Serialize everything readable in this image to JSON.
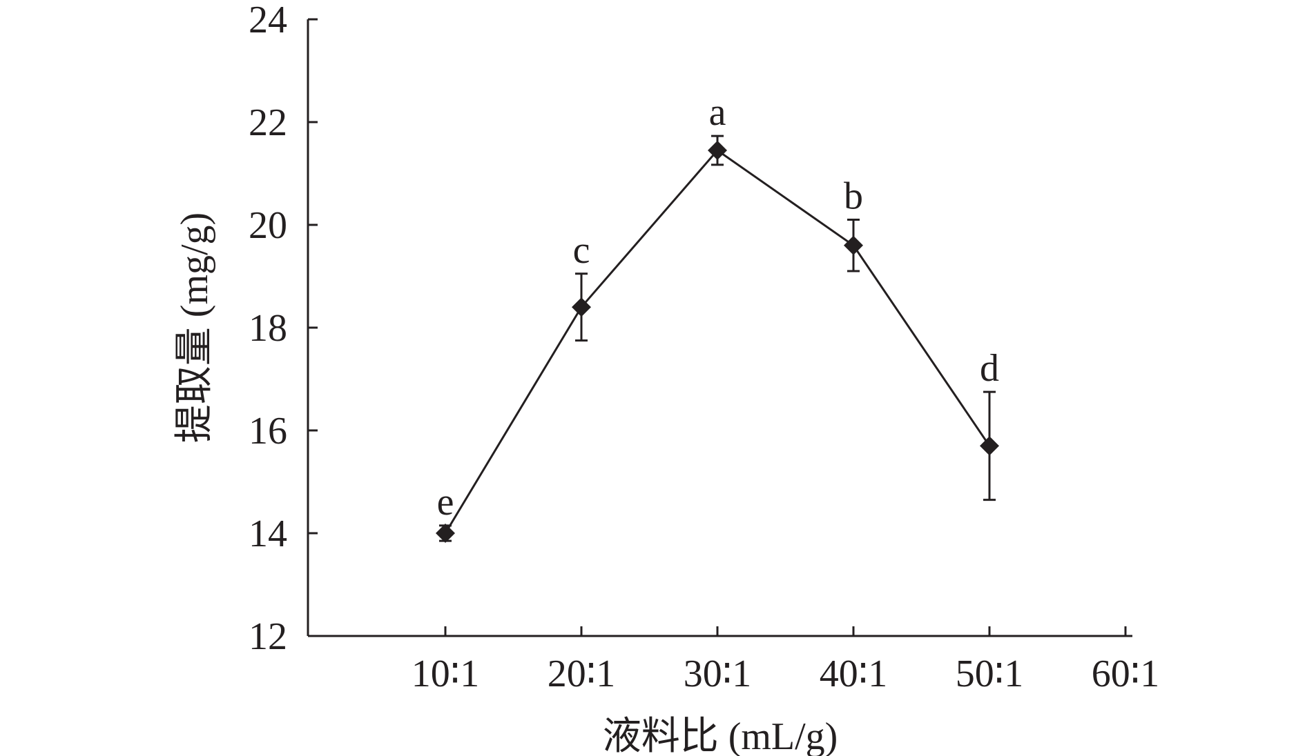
{
  "chart_data": {
    "type": "line",
    "xlabel": "液料比 (mL/g)",
    "ylabel": "提取量 (mg/g)",
    "categories": [
      "10∶1",
      "20∶1",
      "30∶1",
      "40∶1",
      "50∶1",
      "60∶1"
    ],
    "ylim": [
      12,
      24
    ],
    "yticks": [
      12,
      14,
      16,
      18,
      20,
      22,
      24
    ],
    "grid": false,
    "series": [
      {
        "marker": "diamond",
        "color": "#231f20",
        "points": [
          {
            "x": "10∶1",
            "y": 14.0,
            "error": 0.15,
            "label": "e"
          },
          {
            "x": "20∶1",
            "y": 18.4,
            "error": 0.65,
            "label": "c"
          },
          {
            "x": "30∶1",
            "y": 21.45,
            "error": 0.28,
            "label": "a"
          },
          {
            "x": "40∶1",
            "y": 19.6,
            "error": 0.5,
            "label": "b"
          },
          {
            "x": "50∶1",
            "y": 15.7,
            "error": 1.05,
            "label": "d"
          }
        ]
      }
    ]
  }
}
